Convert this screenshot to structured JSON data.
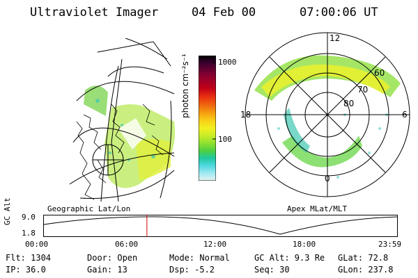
{
  "header": {
    "instrument": "Ultraviolet Imager",
    "date": "04 Feb 00",
    "time": "07:00:06 UT"
  },
  "colorbar": {
    "unit_label": "photon cm⁻²s⁻¹",
    "ticks": [
      "1000",
      "100"
    ],
    "colors": [
      "#000000",
      "#3a0030",
      "#8a0030",
      "#c00018",
      "#e83010",
      "#f06a10",
      "#f5a010",
      "#f8d018",
      "#f2f020",
      "#c8ec28",
      "#90e030",
      "#50d040",
      "#20c8a0",
      "#50d8e0",
      "#a0e8f0",
      "#e8f4f4"
    ]
  },
  "left_map": {
    "label": "Geographic Lat/Lon"
  },
  "right_map": {
    "label": "Apex MLat/MLT",
    "mlt_labels": [
      "12",
      "18",
      "6",
      "0"
    ],
    "lat_labels": [
      "60",
      "70",
      "80"
    ]
  },
  "timeline": {
    "y_label": "GC Alt",
    "y_ticks": [
      "9.0",
      "1.8"
    ],
    "x_ticks": [
      "00:00",
      "06:00",
      "12:00",
      "18:00",
      "23:59"
    ],
    "current_marker_hour": 7.0
  },
  "footer": {
    "flt": "Flt: 1304",
    "door": "Door: Open",
    "mode": "Mode: Normal",
    "gc_alt": "GC Alt: 9.3 Re",
    "glat": "GLat:  72.8",
    "ip": "IP: 36.0",
    "gain": "Gain: 13",
    "dsp": "Dsp:   -5.2",
    "seq": "Seq: 30",
    "glon": "GLon: 237.8"
  },
  "colors": {
    "marker": "#cc0000",
    "background": "#ffffff"
  }
}
